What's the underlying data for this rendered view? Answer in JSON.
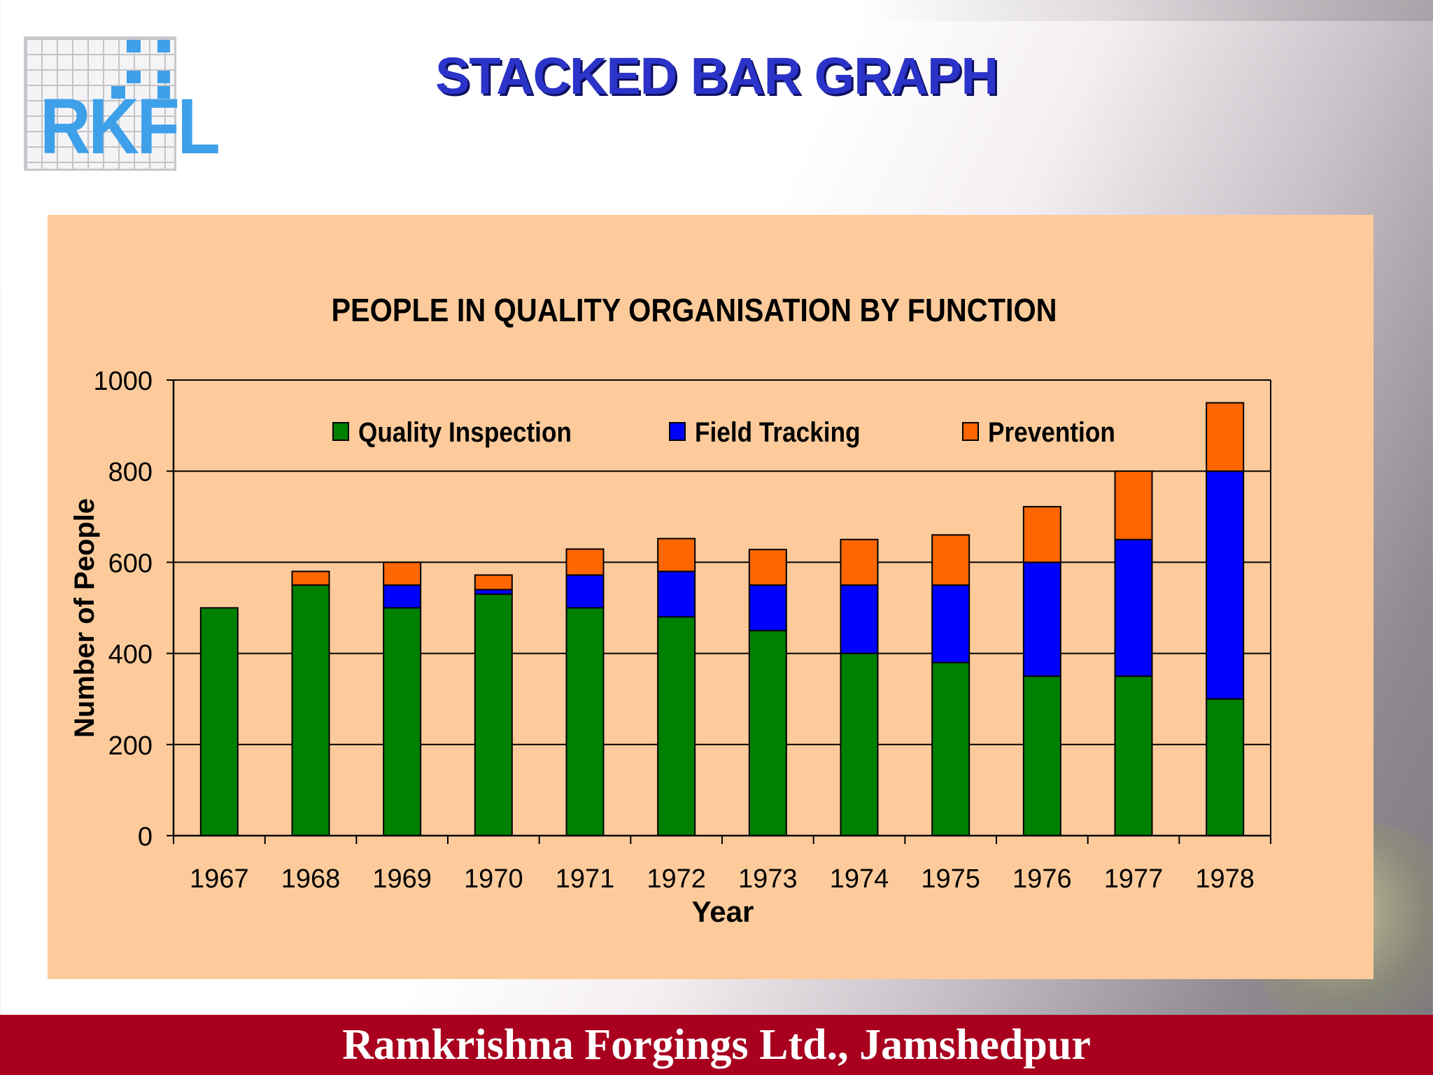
{
  "slide_title": "STACKED BAR GRAPH",
  "logo": {
    "text": "RKFL"
  },
  "footer": {
    "text": "Ramkrishna Forgings Ltd., Jamshedpur"
  },
  "colors": {
    "quality_inspection": "#008000",
    "field_tracking": "#0000ff",
    "prevention": "#ff6600",
    "panel_bg": "#fdcb9b",
    "footer_bg": "#a8001e",
    "title": "#2b33c8"
  },
  "chart_data": {
    "type": "bar",
    "stacked": true,
    "title": "PEOPLE IN QUALITY ORGANISATION BY FUNCTION",
    "xlabel": "Year",
    "ylabel": "Number of People",
    "ylim": [
      0,
      1000
    ],
    "yticks": [
      "0",
      "200",
      "400",
      "600",
      "800",
      "1000"
    ],
    "grid": true,
    "legend_position": "top",
    "categories": [
      "1967",
      "1968",
      "1969",
      "1970",
      "1971",
      "1972",
      "1973",
      "1974",
      "1975",
      "1976",
      "1977",
      "1978"
    ],
    "series": [
      {
        "name": "Quality Inspection",
        "color": "#008000",
        "values": [
          500,
          550,
          500,
          530,
          500,
          480,
          450,
          400,
          380,
          350,
          350,
          300
        ]
      },
      {
        "name": "Field Tracking",
        "color": "#0000ff",
        "values": [
          0,
          0,
          50,
          10,
          72,
          100,
          100,
          150,
          170,
          250,
          300,
          500
        ]
      },
      {
        "name": "Prevention",
        "color": "#ff6600",
        "values": [
          0,
          30,
          50,
          32,
          57,
          72,
          78,
          100,
          110,
          122,
          150,
          150
        ]
      }
    ]
  }
}
